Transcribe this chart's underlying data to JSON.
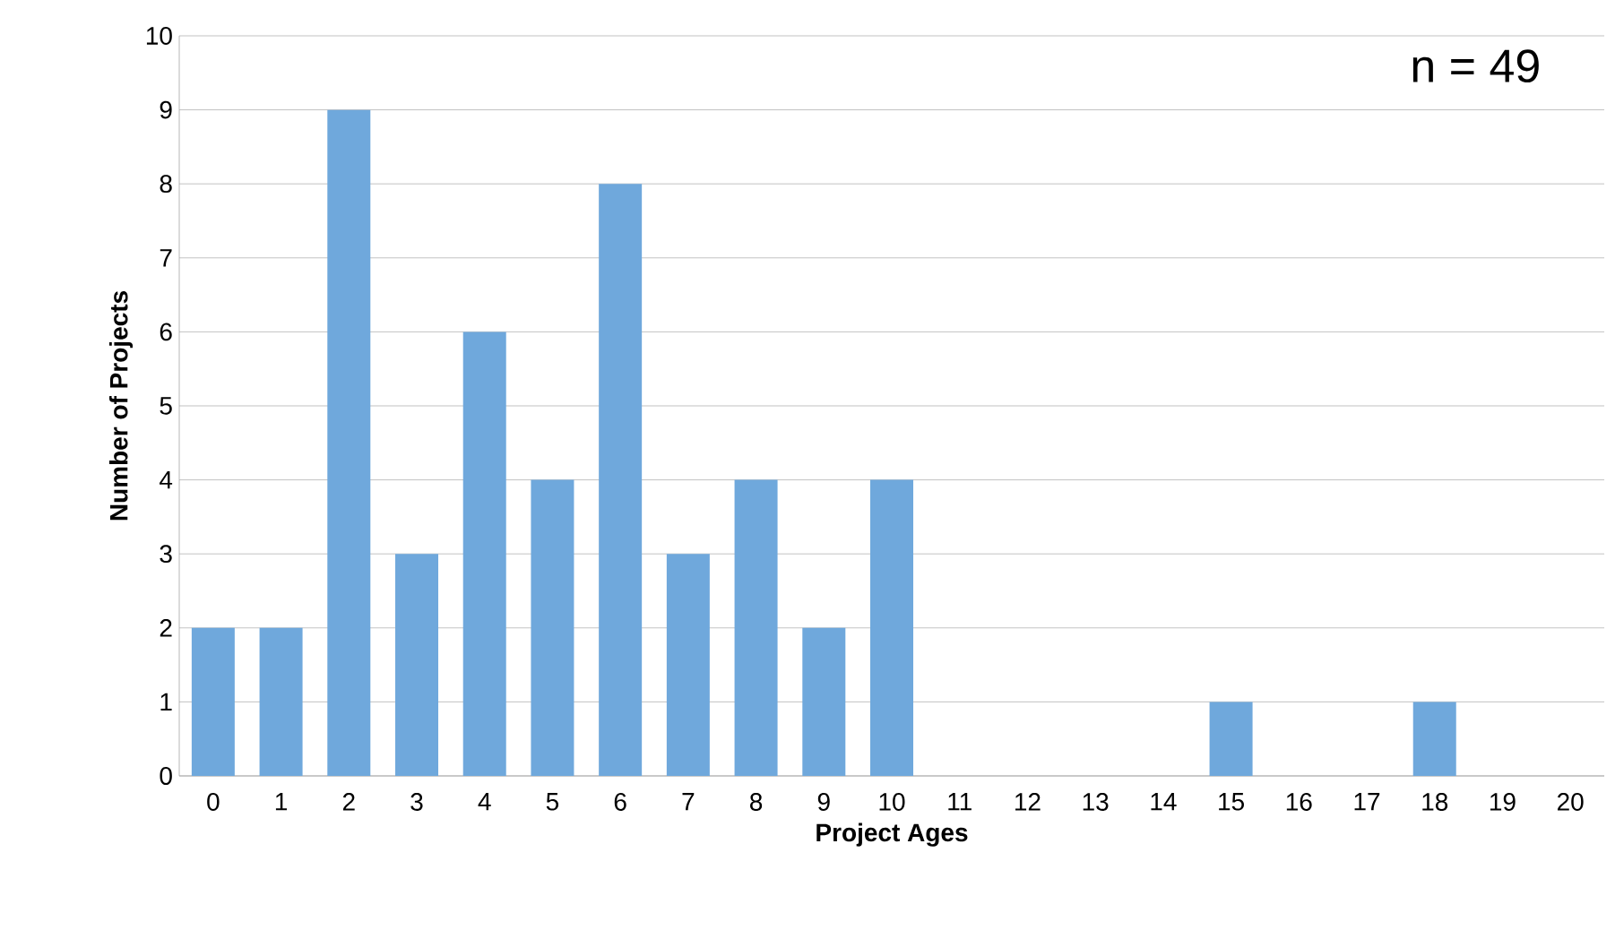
{
  "chart_data": {
    "type": "bar",
    "xlabel": "Project Ages",
    "ylabel": "Number of Projects",
    "categories": [
      "0",
      "1",
      "2",
      "3",
      "4",
      "5",
      "6",
      "7",
      "8",
      "9",
      "10",
      "11",
      "12",
      "13",
      "14",
      "15",
      "16",
      "17",
      "18",
      "19",
      "20"
    ],
    "values": [
      2,
      2,
      9,
      3,
      6,
      4,
      8,
      3,
      4,
      2,
      4,
      0,
      0,
      0,
      0,
      1,
      0,
      0,
      1,
      0,
      0
    ],
    "color": "#6fa8dc",
    "ylim": [
      0,
      10
    ],
    "yticks": [
      0,
      1,
      2,
      3,
      4,
      5,
      6,
      7,
      8,
      9,
      10
    ],
    "grid": "y",
    "annotations": [
      "n = 49"
    ]
  }
}
